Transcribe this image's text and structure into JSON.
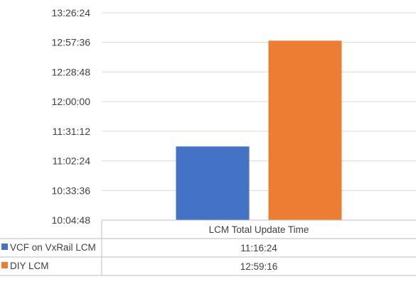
{
  "chart_data": {
    "type": "bar",
    "categories": [
      "LCM Total Update Time"
    ],
    "series": [
      {
        "name": "VCF on VxRail LCM",
        "color": "#4472c4",
        "values": [
          "11:16:24"
        ]
      },
      {
        "name": "DIY LCM",
        "color": "#ed7d31",
        "values": [
          "12:59:16"
        ]
      }
    ],
    "y_ticks": [
      "10:04:48",
      "10:33:36",
      "11:02:24",
      "11:31:12",
      "12:00:00",
      "12:28:48",
      "12:57:36",
      "13:26:24"
    ],
    "ylim": [
      "10:04:48",
      "13:26:24"
    ],
    "grid": true,
    "legend": "data-table-left",
    "data_table": true
  }
}
